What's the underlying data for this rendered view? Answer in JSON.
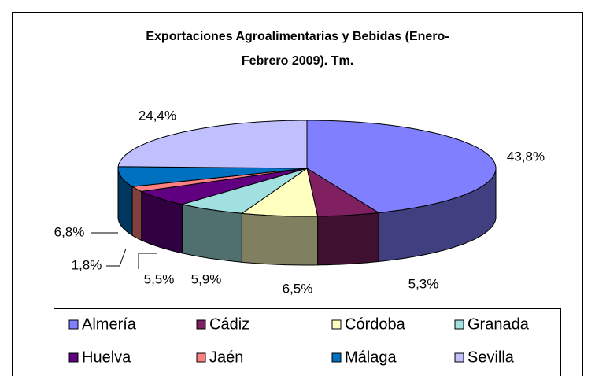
{
  "chart_data": {
    "type": "pie3d",
    "title": "Exportaciones Agroalimentarias y Bebidas (Enero-Febrero 2009). Tm.",
    "categories": [
      "Almería",
      "Cádiz",
      "Córdoba",
      "Granada",
      "Huelva",
      "Jaén",
      "Málaga",
      "Sevilla"
    ],
    "values": [
      43.8,
      5.3,
      6.5,
      5.9,
      5.5,
      1.8,
      6.8,
      24.4
    ],
    "value_labels": [
      "43,8%",
      "5,3%",
      "6,5%",
      "5,9%",
      "5,5%",
      "1,8%",
      "6,8%",
      "24,4%"
    ],
    "colors": [
      "#8080ff",
      "#802060",
      "#ffffc0",
      "#a0e0e0",
      "#600080",
      "#ff8080",
      "#0070c0",
      "#c0c0ff"
    ],
    "legend": "bottom"
  }
}
